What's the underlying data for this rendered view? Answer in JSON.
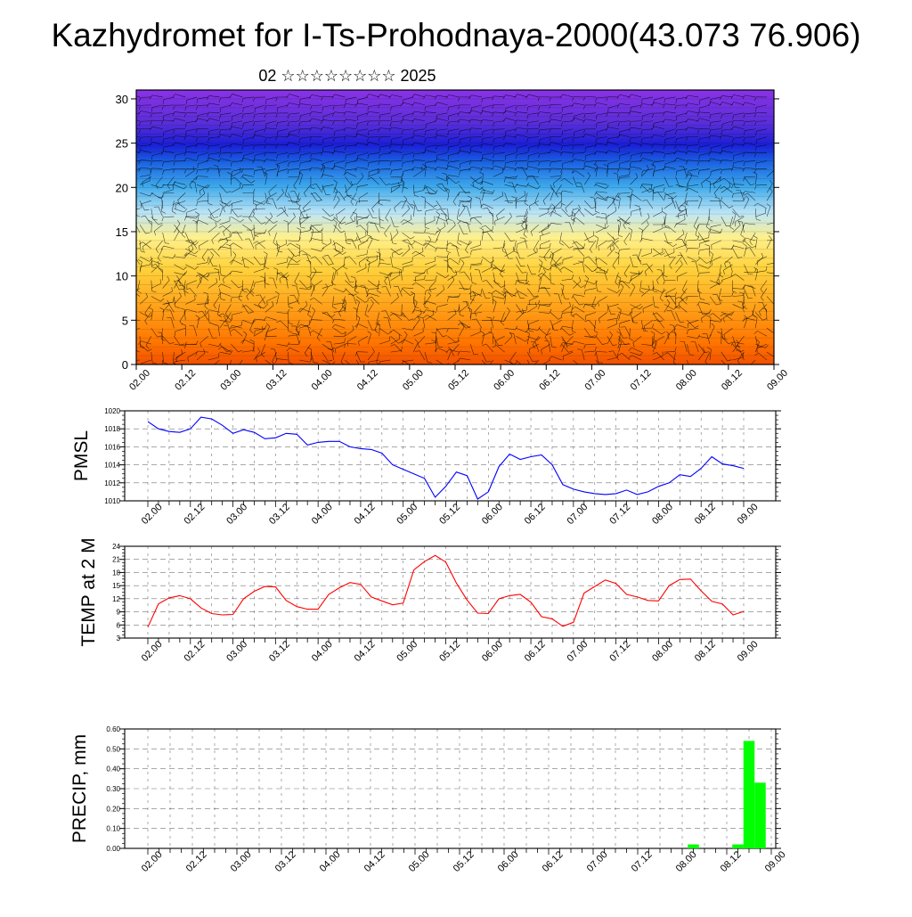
{
  "title": "Kazhydromet for I-Ts-Prohodnaya-2000(43.073 76.906)",
  "subtitle": "02 ☆☆☆☆☆☆☆☆ 2025",
  "time_ticks": [
    "02.00",
    "02.12",
    "03.00",
    "03.12",
    "04.00",
    "04.12",
    "05.00",
    "05.12",
    "06.00",
    "06.12",
    "07.00",
    "07.12",
    "08.00",
    "08.12",
    "09.00"
  ],
  "chart_data": [
    {
      "type": "heatmap",
      "title": "",
      "xlabel": "",
      "ylabel": "",
      "y_ticks": [
        "0",
        "5",
        "10",
        "15",
        "20",
        "25",
        "30"
      ],
      "ylim": [
        0,
        31
      ],
      "note_colors": [
        "#e60000",
        "#ff7a00",
        "#ffd54a",
        "#fff4a0",
        "#bfe6f5",
        "#35a6e8",
        "#1a2bd6",
        "#7a30e0"
      ],
      "wind_barbs": true
    },
    {
      "type": "line",
      "ylabel": "PMSL",
      "ylim": [
        1010,
        1020
      ],
      "y_ticks": [
        "1010",
        "1012",
        "1014",
        "1016",
        "1018",
        "1020"
      ],
      "color": "#0000ff",
      "x_hours": [
        0,
        3,
        6,
        9,
        12,
        15,
        18,
        21,
        24,
        27,
        30,
        33,
        36,
        39,
        42,
        45,
        48,
        51,
        54,
        57,
        60,
        63,
        66,
        69,
        72,
        75,
        78,
        81,
        84,
        87,
        90,
        93,
        96,
        99,
        102,
        105,
        108,
        111,
        114,
        117,
        120,
        123,
        126,
        129,
        132,
        135,
        138,
        141,
        144,
        147,
        150,
        153,
        156,
        159,
        162,
        165,
        168
      ],
      "values": [
        1018.8,
        1018.0,
        1017.7,
        1017.6,
        1018.0,
        1019.3,
        1019.1,
        1018.4,
        1017.5,
        1017.9,
        1017.6,
        1016.9,
        1017.0,
        1017.5,
        1017.4,
        1016.2,
        1016.5,
        1016.6,
        1016.6,
        1016.0,
        1015.8,
        1015.7,
        1015.3,
        1014.0,
        1013.5,
        1013.0,
        1012.5,
        1010.4,
        1011.6,
        1013.2,
        1012.8,
        1010.2,
        1011.0,
        1013.8,
        1015.2,
        1014.6,
        1014.9,
        1015.1,
        1014.0,
        1011.8,
        1011.3,
        1011.0,
        1010.8,
        1010.7,
        1010.8,
        1011.2,
        1010.7,
        1011.0,
        1011.6,
        1012.0,
        1012.9,
        1012.7,
        1013.6,
        1014.9,
        1014.1,
        1013.9,
        1013.6
      ]
    },
    {
      "type": "line",
      "ylabel": "TEMP at 2 M",
      "ylim": [
        3,
        24
      ],
      "y_ticks": [
        "3",
        "6",
        "9",
        "12",
        "15",
        "18",
        "21",
        "24"
      ],
      "color": "#ff0000",
      "x_hours": [
        0,
        3,
        6,
        9,
        12,
        15,
        18,
        21,
        24,
        27,
        30,
        33,
        36,
        39,
        42,
        45,
        48,
        51,
        54,
        57,
        60,
        63,
        66,
        69,
        72,
        75,
        78,
        81,
        84,
        87,
        90,
        93,
        96,
        99,
        102,
        105,
        108,
        111,
        114,
        117,
        120,
        123,
        126,
        129,
        132,
        135,
        138,
        141,
        144,
        147,
        150,
        153,
        156,
        159,
        162,
        165,
        168
      ],
      "values": [
        5.5,
        10.8,
        12.2,
        12.7,
        12.0,
        9.9,
        8.6,
        8.3,
        8.4,
        12.0,
        13.7,
        14.8,
        14.7,
        11.6,
        10.2,
        9.6,
        9.6,
        13.0,
        14.5,
        15.7,
        15.3,
        12.4,
        11.5,
        10.6,
        11.0,
        18.6,
        20.5,
        21.9,
        20.4,
        15.6,
        11.7,
        8.7,
        8.6,
        12.0,
        12.7,
        13.0,
        11.2,
        7.9,
        7.4,
        5.7,
        6.6,
        13.3,
        14.8,
        16.3,
        15.5,
        13.0,
        12.4,
        11.6,
        11.5,
        15.0,
        16.4,
        16.5,
        13.8,
        11.4,
        10.8,
        8.3,
        9.1
      ]
    },
    {
      "type": "bar",
      "ylabel": "PRECIP, mm",
      "ylim": [
        0,
        0.6
      ],
      "y_ticks": [
        "0.00",
        "0.10",
        "0.20",
        "0.30",
        "0.40",
        "0.50",
        "0.60"
      ],
      "color": "#00ff00",
      "bars": [
        {
          "x_hours": 147,
          "value": 0.02
        },
        {
          "x_hours": 159,
          "value": 0.02
        },
        {
          "x_hours": 162,
          "value": 0.54
        },
        {
          "x_hours": 165,
          "value": 0.33
        }
      ]
    }
  ]
}
